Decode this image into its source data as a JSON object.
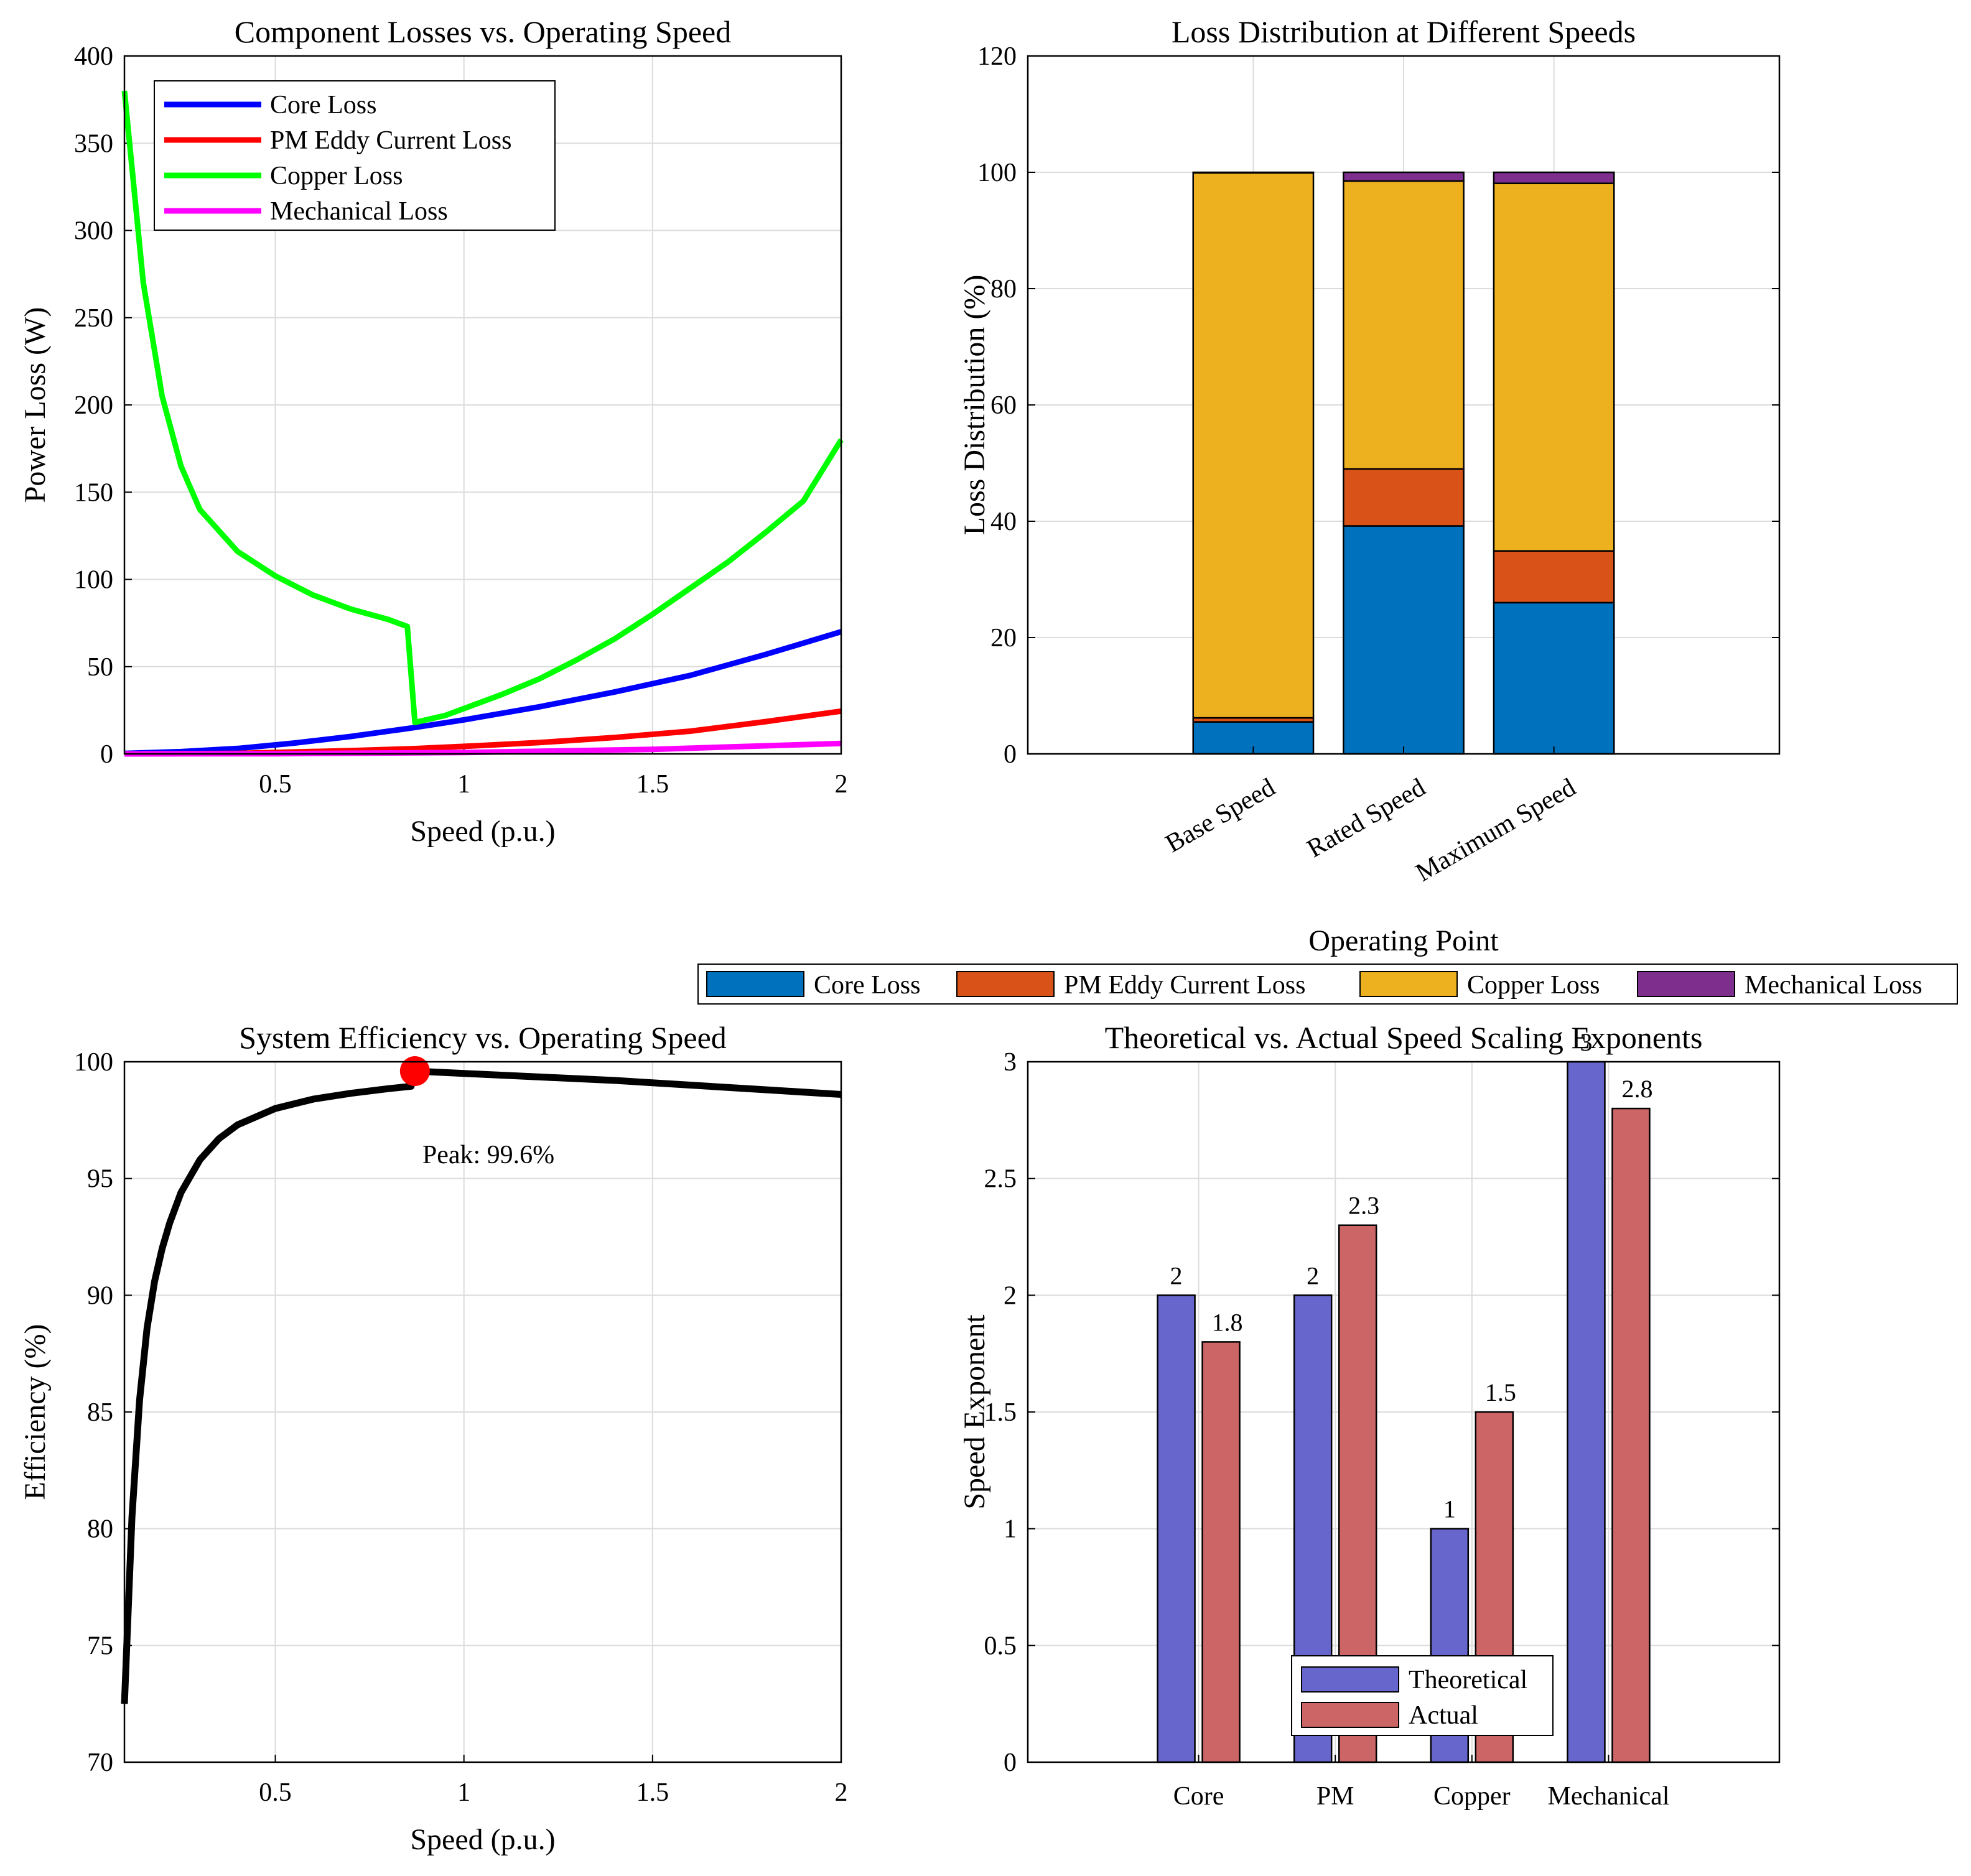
{
  "chart_data": [
    {
      "type": "line",
      "title": "Component Losses vs. Operating Speed",
      "xlabel": "Speed (p.u.)",
      "ylabel": "Power Loss (W)",
      "xlim": [
        0.1,
        2
      ],
      "ylim": [
        0,
        400
      ],
      "xticks": [
        0.5,
        1,
        1.5,
        2
      ],
      "xtick_labels": [
        "0.5",
        "1",
        "1.5",
        "2"
      ],
      "yticks": [
        0,
        50,
        100,
        150,
        200,
        250,
        300,
        350,
        400
      ],
      "ytick_labels": [
        "0",
        "50",
        "100",
        "150",
        "200",
        "250",
        "300",
        "350",
        "400"
      ],
      "grid": true,
      "legend_position": "top-left",
      "series": [
        {
          "name": "Core Loss",
          "color": "#0000ff",
          "x": [
            0.1,
            0.25,
            0.4,
            0.55,
            0.7,
            0.866,
            1.0,
            1.2,
            1.4,
            1.6,
            1.8,
            2.0
          ],
          "y": [
            0.3,
            1.3,
            3.1,
            6.2,
            10.0,
            15.0,
            19.5,
            27.0,
            35.5,
            45.0,
            57.0,
            70.0
          ]
        },
        {
          "name": "PM Eddy Current Loss",
          "color": "#ff0000",
          "x": [
            0.1,
            0.4,
            0.7,
            0.866,
            1.0,
            1.2,
            1.4,
            1.6,
            1.8,
            2.0
          ],
          "y": [
            0.0,
            0.3,
            1.9,
            3.0,
            4.3,
            6.5,
            9.4,
            13.0,
            18.5,
            24.5
          ]
        },
        {
          "name": "Copper Loss",
          "color": "#00ff00",
          "x": [
            0.1,
            0.15,
            0.2,
            0.25,
            0.3,
            0.4,
            0.5,
            0.6,
            0.7,
            0.8,
            0.85,
            0.87,
            0.95,
            1.0,
            1.1,
            1.2,
            1.3,
            1.4,
            1.5,
            1.6,
            1.7,
            1.8,
            1.9,
            2.0
          ],
          "y": [
            380,
            270,
            205,
            165,
            140,
            116,
            102,
            91,
            83,
            77,
            73,
            18,
            22,
            26,
            34,
            43,
            54,
            66,
            80,
            95,
            110,
            127,
            145,
            180
          ]
        },
        {
          "name": "Mechanical Loss",
          "color": "#ff00ff",
          "x": [
            0.1,
            0.5,
            1.0,
            1.5,
            2.0
          ],
          "y": [
            0.0,
            0.1,
            0.8,
            2.6,
            6.0
          ]
        }
      ]
    },
    {
      "type": "bar",
      "stacked": true,
      "title": "Loss Distribution at Different Speeds",
      "xlabel": "Operating Point",
      "ylabel": "Loss Distribution (%)",
      "ylim": [
        0,
        120
      ],
      "yticks": [
        0,
        20,
        40,
        60,
        80,
        100,
        120
      ],
      "ytick_labels": [
        "0",
        "20",
        "40",
        "60",
        "80",
        "100",
        "120"
      ],
      "grid": true,
      "legend_position": "bottom-outside-horizontal",
      "categories": [
        "Base Speed",
        "Rated Speed",
        "Maximum Speed"
      ],
      "series": [
        {
          "name": "Core Loss",
          "color": "#0072bd",
          "values": [
            5.5,
            39.2,
            26.0
          ]
        },
        {
          "name": "PM Eddy Current Loss",
          "color": "#d95319",
          "values": [
            0.7,
            9.8,
            8.9
          ]
        },
        {
          "name": "Copper Loss",
          "color": "#edb120",
          "values": [
            93.7,
            49.5,
            63.2
          ]
        },
        {
          "name": "Mechanical Loss",
          "color": "#7e2f8e",
          "values": [
            0.1,
            1.5,
            1.9
          ]
        }
      ]
    },
    {
      "type": "line",
      "title": "System Efficiency vs. Operating Speed",
      "xlabel": "Speed (p.u.)",
      "ylabel": "Efficiency (%)",
      "xlim": [
        0.1,
        2
      ],
      "ylim": [
        70,
        100
      ],
      "xticks": [
        0.5,
        1,
        1.5,
        2
      ],
      "xtick_labels": [
        "0.5",
        "1",
        "1.5",
        "2"
      ],
      "yticks": [
        70,
        75,
        80,
        85,
        90,
        95,
        100
      ],
      "ytick_labels": [
        "70",
        "75",
        "80",
        "85",
        "90",
        "95",
        "100"
      ],
      "grid": true,
      "series": [
        {
          "name": "Efficiency",
          "color": "#000000",
          "x": [
            0.1,
            0.12,
            0.14,
            0.16,
            0.18,
            0.2,
            0.22,
            0.25,
            0.3,
            0.35,
            0.4,
            0.5,
            0.6,
            0.7,
            0.8,
            0.86,
            0.87,
            1.0,
            1.2,
            1.4,
            1.6,
            1.8,
            2.0
          ],
          "y": [
            72.5,
            80.5,
            85.5,
            88.6,
            90.6,
            92.0,
            93.1,
            94.4,
            95.8,
            96.7,
            97.3,
            98.0,
            98.4,
            98.65,
            98.85,
            98.95,
            99.6,
            99.5,
            99.35,
            99.2,
            99.0,
            98.8,
            98.6
          ]
        }
      ],
      "peak": {
        "x": 0.87,
        "y": 99.6,
        "color": "#ff0000",
        "label": "Peak: 99.6%"
      }
    },
    {
      "type": "bar",
      "title": "Theoretical vs. Actual Speed Scaling Exponents",
      "xlabel": "",
      "ylabel": "Speed Exponent",
      "ylim": [
        0,
        3
      ],
      "yticks": [
        0,
        0.5,
        1,
        1.5,
        2,
        2.5,
        3
      ],
      "ytick_labels": [
        "0",
        "0.5",
        "1",
        "1.5",
        "2",
        "2.5",
        "3"
      ],
      "grid": true,
      "legend_position": "bottom-center",
      "categories": [
        "Core",
        "PM",
        "Copper",
        "Mechanical"
      ],
      "series": [
        {
          "name": "Theoretical",
          "color": "#6666cc",
          "values": [
            2,
            2,
            1,
            3
          ],
          "labels": [
            "2",
            "2",
            "1",
            "3"
          ]
        },
        {
          "name": "Actual",
          "color": "#cc6666",
          "values": [
            1.8,
            2.3,
            1.5,
            2.8
          ],
          "labels": [
            "1.8",
            "2.3",
            "1.5",
            "2.8"
          ]
        }
      ]
    }
  ]
}
